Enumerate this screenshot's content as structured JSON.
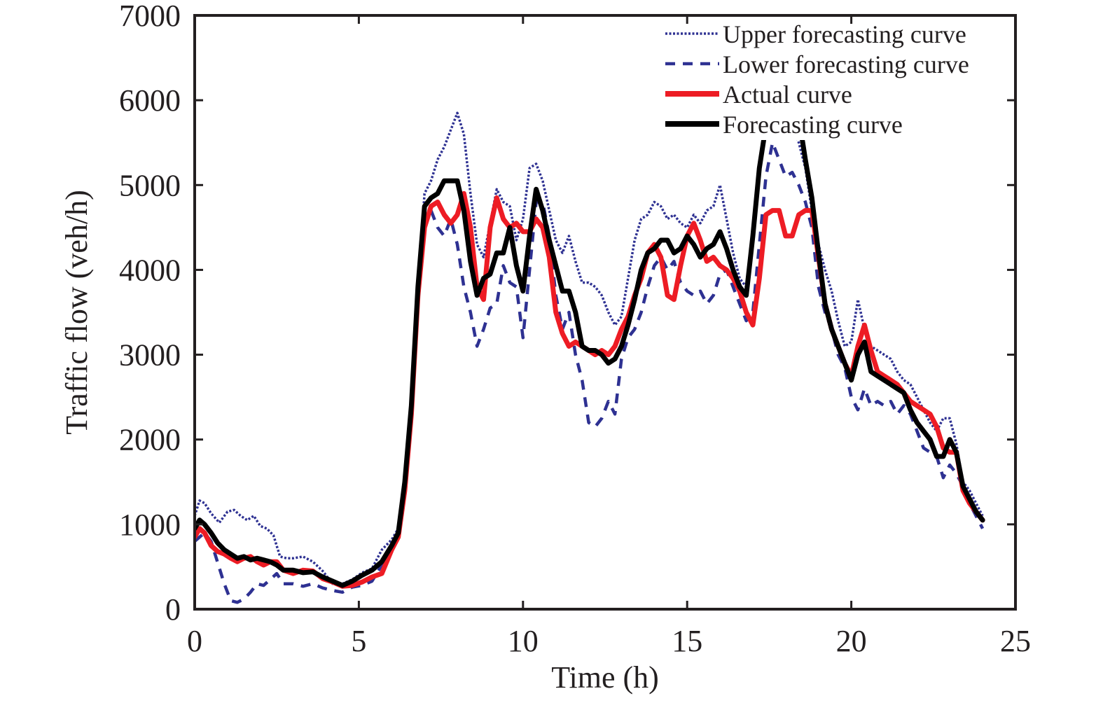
{
  "chart_data": {
    "type": "line",
    "title": "",
    "xlabel": "Time (h)",
    "ylabel": "Traffic flow (veh/h)",
    "xlim": [
      0,
      25
    ],
    "ylim": [
      0,
      7000
    ],
    "xticks": [
      0,
      5,
      10,
      15,
      20,
      25
    ],
    "yticks": [
      0,
      1000,
      2000,
      3000,
      4000,
      5000,
      6000,
      7000
    ],
    "xtick_labels": [
      "0",
      "5",
      "10",
      "15",
      "20",
      "25"
    ],
    "ytick_labels": [
      "0",
      "1000",
      "2000",
      "3000",
      "4000",
      "5000",
      "6000",
      "7000"
    ],
    "grid": false,
    "legend_position": "top-right",
    "series": [
      {
        "name": "Upper forecasting curve",
        "color": "#2e3192",
        "style": "dotted",
        "x": [
          0,
          0.15,
          0.3,
          0.5,
          0.75,
          1.0,
          1.2,
          1.4,
          1.6,
          1.8,
          2.0,
          2.2,
          2.4,
          2.6,
          2.8,
          3.0,
          3.3,
          3.6,
          3.9,
          4.2,
          4.5,
          4.8,
          5.1,
          5.4,
          5.7,
          6.0,
          6.2,
          6.4,
          6.6,
          6.8,
          7.0,
          7.2,
          7.4,
          7.6,
          7.8,
          8.0,
          8.2,
          8.4,
          8.6,
          8.8,
          9.0,
          9.2,
          9.4,
          9.6,
          9.8,
          10.0,
          10.2,
          10.4,
          10.6,
          10.8,
          11.0,
          11.2,
          11.4,
          11.6,
          11.8,
          12.0,
          12.2,
          12.4,
          12.6,
          12.8,
          13.0,
          13.2,
          13.4,
          13.6,
          13.8,
          14.0,
          14.2,
          14.4,
          14.6,
          14.8,
          15.0,
          15.2,
          15.4,
          15.6,
          15.8,
          16.0,
          16.2,
          16.4,
          16.6,
          16.8,
          17.0,
          17.2,
          17.4,
          17.6,
          17.8,
          18.0,
          18.2,
          18.4,
          18.6,
          18.8,
          19.0,
          19.2,
          19.4,
          19.6,
          19.8,
          20.0,
          20.2,
          20.4,
          20.6,
          20.8,
          21.0,
          21.2,
          21.4,
          21.6,
          21.8,
          22.0,
          22.2,
          22.4,
          22.6,
          22.8,
          23.0,
          23.2,
          23.4,
          23.6,
          23.8,
          24.0
        ],
        "values": [
          1100,
          1280,
          1250,
          1130,
          1020,
          1150,
          1170,
          1100,
          1050,
          1100,
          980,
          950,
          870,
          620,
          600,
          600,
          620,
          560,
          450,
          300,
          300,
          350,
          430,
          480,
          700,
          820,
          950,
          1500,
          2300,
          3800,
          4900,
          5050,
          5300,
          5450,
          5650,
          5850,
          5600,
          4900,
          4300,
          4150,
          4550,
          4950,
          4800,
          4750,
          4350,
          4600,
          5200,
          5250,
          5050,
          4700,
          4350,
          4200,
          4400,
          4100,
          3850,
          3850,
          3800,
          3700,
          3500,
          3350,
          3450,
          3900,
          4350,
          4600,
          4650,
          4800,
          4750,
          4600,
          4650,
          4550,
          4500,
          4650,
          4550,
          4700,
          4750,
          5000,
          4600,
          4200,
          3900,
          3800,
          4500,
          5200,
          5600,
          5800,
          6000,
          5600,
          5700,
          5500,
          5200,
          4700,
          4300,
          4000,
          3750,
          3400,
          3100,
          3150,
          3650,
          3300,
          3100,
          3050,
          3000,
          2950,
          2800,
          2700,
          2650,
          2500,
          2350,
          2200,
          2100,
          2250,
          2250,
          1950,
          1500,
          1400,
          1250,
          1100
        ]
      },
      {
        "name": "Lower forecasting curve",
        "color": "#2e3192",
        "style": "dashed",
        "x": [
          0,
          0.15,
          0.3,
          0.5,
          0.7,
          0.9,
          1.1,
          1.3,
          1.5,
          1.7,
          1.9,
          2.1,
          2.3,
          2.5,
          2.7,
          3.0,
          3.3,
          3.6,
          3.9,
          4.2,
          4.5,
          4.8,
          5.1,
          5.4,
          5.7,
          6.0,
          6.2,
          6.4,
          6.6,
          6.8,
          7.0,
          7.2,
          7.4,
          7.6,
          7.8,
          8.0,
          8.2,
          8.4,
          8.6,
          8.8,
          9.0,
          9.2,
          9.4,
          9.6,
          9.8,
          10.0,
          10.2,
          10.4,
          10.6,
          10.8,
          11.0,
          11.2,
          11.4,
          11.6,
          11.8,
          12.0,
          12.2,
          12.4,
          12.6,
          12.8,
          13.0,
          13.2,
          13.4,
          13.6,
          13.8,
          14.0,
          14.2,
          14.4,
          14.6,
          14.8,
          15.0,
          15.2,
          15.4,
          15.6,
          15.8,
          16.0,
          16.2,
          16.4,
          16.6,
          16.8,
          17.0,
          17.2,
          17.4,
          17.6,
          17.8,
          18.0,
          18.2,
          18.4,
          18.6,
          18.8,
          19.0,
          19.2,
          19.4,
          19.6,
          19.8,
          20.0,
          20.2,
          20.4,
          20.6,
          20.8,
          21.0,
          21.2,
          21.4,
          21.6,
          21.8,
          22.0,
          22.2,
          22.4,
          22.6,
          22.8,
          23.0,
          23.2,
          23.4,
          23.6,
          23.8,
          24.0
        ],
        "values": [
          800,
          850,
          900,
          800,
          550,
          300,
          100,
          80,
          120,
          200,
          300,
          280,
          350,
          420,
          300,
          300,
          270,
          300,
          250,
          220,
          200,
          260,
          280,
          330,
          520,
          760,
          900,
          1500,
          2200,
          3600,
          4500,
          4700,
          4500,
          4400,
          4600,
          4300,
          3800,
          3500,
          3100,
          3300,
          3550,
          3600,
          4050,
          3850,
          3800,
          3200,
          4000,
          4800,
          4800,
          4400,
          3700,
          3300,
          3500,
          3000,
          2700,
          2200,
          2150,
          2250,
          2450,
          2300,
          2950,
          3200,
          3300,
          3500,
          3800,
          4050,
          4150,
          4000,
          4100,
          3850,
          3750,
          3700,
          3750,
          3600,
          3700,
          3950,
          4000,
          3800,
          3600,
          3400,
          3500,
          4300,
          5100,
          5500,
          5300,
          5100,
          5150,
          5000,
          4800,
          4500,
          3800,
          3500,
          3300,
          3000,
          2850,
          2500,
          2350,
          2600,
          2400,
          2450,
          2400,
          2450,
          2300,
          2400,
          2300,
          2100,
          1900,
          1850,
          1800,
          1550,
          1700,
          1600,
          1450,
          1250,
          1100,
          950
        ]
      },
      {
        "name": "Actual curve",
        "color": "#ed1c24",
        "style": "solid",
        "x": [
          0,
          0.15,
          0.3,
          0.5,
          0.7,
          0.9,
          1.1,
          1.3,
          1.5,
          1.7,
          1.9,
          2.1,
          2.3,
          2.5,
          2.7,
          3.0,
          3.3,
          3.6,
          3.9,
          4.2,
          4.5,
          4.8,
          5.1,
          5.4,
          5.7,
          6.0,
          6.2,
          6.4,
          6.6,
          6.8,
          7.0,
          7.2,
          7.4,
          7.6,
          7.8,
          8.0,
          8.2,
          8.4,
          8.6,
          8.8,
          9.0,
          9.2,
          9.4,
          9.6,
          9.8,
          10.0,
          10.2,
          10.4,
          10.6,
          10.8,
          11.0,
          11.2,
          11.4,
          11.6,
          11.8,
          12.0,
          12.2,
          12.4,
          12.6,
          12.8,
          13.0,
          13.2,
          13.4,
          13.6,
          13.8,
          14.0,
          14.2,
          14.4,
          14.6,
          14.8,
          15.0,
          15.2,
          15.4,
          15.6,
          15.8,
          16.0,
          16.2,
          16.4,
          16.6,
          16.8,
          17.0,
          17.2,
          17.4,
          17.6,
          17.8,
          18.0,
          18.2,
          18.4,
          18.6,
          18.8,
          19.0,
          19.2,
          19.4,
          19.6,
          19.8,
          20.0,
          20.2,
          20.4,
          20.6,
          20.8,
          21.0,
          21.2,
          21.4,
          21.6,
          21.8,
          22.0,
          22.2,
          22.4,
          22.6,
          22.8,
          23.0,
          23.2,
          23.4,
          23.6,
          23.8,
          24.0
        ],
        "values": [
          850,
          950,
          900,
          750,
          680,
          650,
          600,
          560,
          600,
          620,
          560,
          520,
          560,
          560,
          460,
          420,
          460,
          450,
          360,
          320,
          270,
          280,
          320,
          380,
          420,
          700,
          850,
          1400,
          2300,
          3700,
          4500,
          4750,
          4800,
          4650,
          4550,
          4650,
          4900,
          4500,
          3800,
          3650,
          4500,
          4850,
          4600,
          4500,
          4550,
          4450,
          4450,
          4600,
          4500,
          4150,
          3500,
          3250,
          3100,
          3150,
          3100,
          3050,
          3000,
          3050,
          3000,
          3100,
          3300,
          3450,
          3700,
          3900,
          4200,
          4300,
          4150,
          3700,
          3650,
          4050,
          4400,
          4550,
          4350,
          4100,
          4150,
          4050,
          4000,
          3900,
          3750,
          3500,
          3350,
          3900,
          4650,
          4700,
          4700,
          4400,
          4400,
          4650,
          4700,
          4700,
          4150,
          3600,
          3300,
          3100,
          2900,
          2750,
          3100,
          3350,
          3050,
          2800,
          2750,
          2700,
          2650,
          2550,
          2450,
          2400,
          2350,
          2300,
          2150,
          1900,
          1850,
          1850,
          1400,
          1250,
          1150,
          1050
        ]
      },
      {
        "name": "Forecasting curve",
        "color": "#000000",
        "style": "solid",
        "x": [
          0,
          0.15,
          0.3,
          0.5,
          0.7,
          0.9,
          1.1,
          1.3,
          1.5,
          1.7,
          1.9,
          2.1,
          2.3,
          2.5,
          2.7,
          3.0,
          3.3,
          3.6,
          3.9,
          4.2,
          4.5,
          4.8,
          5.1,
          5.4,
          5.7,
          6.0,
          6.2,
          6.4,
          6.6,
          6.8,
          7.0,
          7.2,
          7.4,
          7.6,
          7.8,
          8.0,
          8.2,
          8.4,
          8.6,
          8.8,
          9.0,
          9.2,
          9.4,
          9.6,
          9.8,
          10.0,
          10.2,
          10.4,
          10.6,
          10.8,
          11.0,
          11.2,
          11.4,
          11.6,
          11.8,
          12.0,
          12.2,
          12.4,
          12.6,
          12.8,
          13.0,
          13.2,
          13.4,
          13.6,
          13.8,
          14.0,
          14.2,
          14.4,
          14.6,
          14.8,
          15.0,
          15.2,
          15.4,
          15.6,
          15.8,
          16.0,
          16.2,
          16.4,
          16.6,
          16.8,
          17.0,
          17.2,
          17.4,
          17.6,
          17.8,
          18.0,
          18.2,
          18.4,
          18.6,
          18.8,
          19.0,
          19.2,
          19.4,
          19.6,
          19.8,
          20.0,
          20.2,
          20.4,
          20.6,
          20.8,
          21.0,
          21.2,
          21.4,
          21.6,
          21.8,
          22.0,
          22.2,
          22.4,
          22.6,
          22.8,
          23.0,
          23.2,
          23.4,
          23.6,
          23.8,
          24.0
        ],
        "values": [
          950,
          1050,
          1000,
          900,
          780,
          700,
          650,
          600,
          620,
          580,
          600,
          580,
          560,
          520,
          460,
          460,
          430,
          440,
          380,
          330,
          280,
          330,
          400,
          460,
          560,
          750,
          900,
          1500,
          2400,
          3800,
          4750,
          4850,
          4900,
          5050,
          5050,
          5050,
          4700,
          4100,
          3700,
          3900,
          3950,
          4200,
          4200,
          4500,
          4050,
          3750,
          4400,
          4950,
          4700,
          4350,
          4050,
          3750,
          3750,
          3500,
          3100,
          3050,
          3050,
          3000,
          2900,
          2950,
          3100,
          3350,
          3650,
          4000,
          4200,
          4250,
          4350,
          4350,
          4200,
          4250,
          4400,
          4300,
          4150,
          4250,
          4300,
          4450,
          4250,
          4000,
          3800,
          3700,
          4400,
          5200,
          5700,
          6000,
          6000,
          5700,
          6000,
          5800,
          5300,
          4850,
          4200,
          3600,
          3300,
          3100,
          2900,
          2700,
          3000,
          3150,
          2800,
          2750,
          2700,
          2650,
          2600,
          2550,
          2350,
          2200,
          2100,
          2000,
          1800,
          1800,
          2000,
          1850,
          1450,
          1300,
          1150,
          1050
        ]
      }
    ]
  },
  "legend": {
    "items": [
      {
        "label": "Upper forecasting curve",
        "color": "#2e3192",
        "style": "dotted"
      },
      {
        "label": "Lower forecasting curve",
        "color": "#2e3192",
        "style": "dashed"
      },
      {
        "label": "Actual curve",
        "color": "#ed1c24",
        "style": "solid"
      },
      {
        "label": "Forecasting curve",
        "color": "#000000",
        "style": "solid"
      }
    ]
  }
}
